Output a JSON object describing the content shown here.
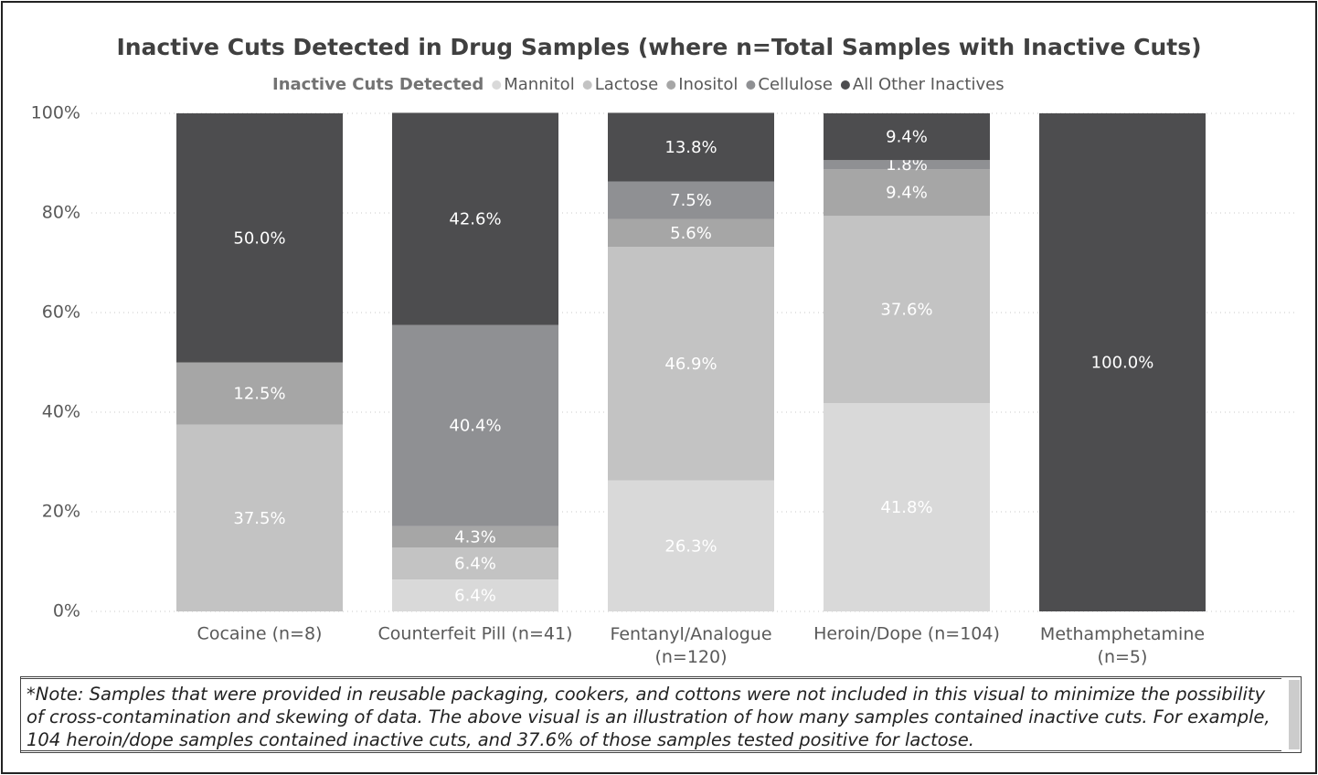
{
  "chart_data": {
    "type": "stacked_bar_100",
    "title": "Inactive Cuts Detected in Drug Samples (where n=Total Samples with Inactive Cuts)",
    "legend_title": "Inactive Cuts Detected",
    "legend_position": "top",
    "categories": [
      "Cocaine (n=8)",
      "Counterfeit Pill (n=41)",
      "Fentanyl/Analogue (n=120)",
      "Heroin/Dope (n=104)",
      "Methamphetamine (n=5)"
    ],
    "series": [
      {
        "name": "Mannitol",
        "color": "#d9d9d9",
        "values": [
          null,
          6.4,
          26.3,
          41.8,
          null
        ],
        "value_labels": [
          null,
          "6.4%",
          "26.3%",
          "41.8%",
          null
        ]
      },
      {
        "name": "Lactose",
        "color": "#c3c3c3",
        "values": [
          37.5,
          6.4,
          46.9,
          37.6,
          null
        ],
        "value_labels": [
          "37.5%",
          "6.4%",
          "46.9%",
          "37.6%",
          null
        ]
      },
      {
        "name": "Inositol",
        "color": "#a6a6a6",
        "values": [
          12.5,
          4.3,
          5.6,
          9.4,
          null
        ],
        "value_labels": [
          "12.5%",
          "4.3%",
          "5.6%",
          "9.4%",
          null
        ]
      },
      {
        "name": "Cellulose",
        "color": "#8f9093",
        "values": [
          null,
          40.4,
          7.5,
          1.8,
          null
        ],
        "value_labels": [
          null,
          "40.4%",
          "7.5%",
          "1.8%",
          null
        ]
      },
      {
        "name": "All Other Inactives",
        "color": "#4d4d4f",
        "values": [
          50.0,
          42.6,
          13.8,
          9.4,
          100.0
        ],
        "value_labels": [
          "50.0%",
          "42.6%",
          "13.8%",
          "9.4%",
          "100.0%"
        ]
      }
    ],
    "ylim": [
      0,
      100
    ],
    "yticks": [
      {
        "value": 0,
        "label": "0%"
      },
      {
        "value": 20,
        "label": "20%"
      },
      {
        "value": 40,
        "label": "40%"
      },
      {
        "value": 60,
        "label": "60%"
      },
      {
        "value": 80,
        "label": "80%"
      },
      {
        "value": 100,
        "label": "100%"
      }
    ],
    "grid": true
  },
  "note": "*Note: Samples that were provided in reusable packaging, cookers, and cottons were not included in this visual to minimize the possibility of cross-contamination and skewing of data. The above visual is an illustration of how many samples contained inactive cuts. For example, 104 heroin/dope samples contained inactive cuts, and 37.6% of those samples tested positive for lactose."
}
